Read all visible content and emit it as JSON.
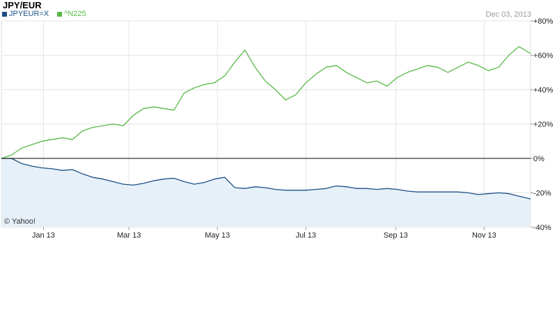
{
  "header": {
    "title": "JPY/EUR",
    "date": "Dec 03, 2013"
  },
  "legend": [
    {
      "name": "JPYEUR=X",
      "color": "#1b4f85"
    },
    {
      "name": "^N225",
      "color": "#58b947"
    }
  ],
  "watermark": "© Yahoo!",
  "chart_data": {
    "type": "line",
    "x_ticks": [
      "Jan 13",
      "Mar 13",
      "May 13",
      "Jul 13",
      "Sep 13",
      "Nov 13"
    ],
    "y_ticks": [
      "+80%",
      "+60%",
      "+40%",
      "+20%",
      "0%",
      "-20%",
      "-40%"
    ],
    "ylim": [
      -40,
      80
    ],
    "xlim": [
      "2012-12-03",
      "2013-12-03"
    ],
    "grid": true,
    "series": [
      {
        "name": "JPYEUR=X",
        "color": "#1b4f85",
        "fill": "#e6f0f8",
        "points": [
          [
            "2012-12-03",
            0
          ],
          [
            "2012-12-10",
            0
          ],
          [
            "2012-12-17",
            -3
          ],
          [
            "2012-12-24",
            -4.5
          ],
          [
            "2012-12-31",
            -5.5
          ],
          [
            "2013-01-07",
            -6
          ],
          [
            "2013-01-14",
            -7
          ],
          [
            "2013-01-21",
            -6.5
          ],
          [
            "2013-01-28",
            -9
          ],
          [
            "2013-02-04",
            -11
          ],
          [
            "2013-02-11",
            -12
          ],
          [
            "2013-02-18",
            -13.5
          ],
          [
            "2013-02-25",
            -15
          ],
          [
            "2013-03-04",
            -15.5
          ],
          [
            "2013-03-11",
            -14.5
          ],
          [
            "2013-03-18",
            -13
          ],
          [
            "2013-03-25",
            -12
          ],
          [
            "2013-04-01",
            -11.5
          ],
          [
            "2013-04-08",
            -13.5
          ],
          [
            "2013-04-15",
            -15
          ],
          [
            "2013-04-22",
            -14
          ],
          [
            "2013-04-29",
            -12
          ],
          [
            "2013-05-06",
            -11
          ],
          [
            "2013-05-13",
            -17
          ],
          [
            "2013-05-20",
            -17.5
          ],
          [
            "2013-05-27",
            -16.5
          ],
          [
            "2013-06-03",
            -17
          ],
          [
            "2013-06-10",
            -18
          ],
          [
            "2013-06-17",
            -18.5
          ],
          [
            "2013-06-24",
            -18.5
          ],
          [
            "2013-07-01",
            -18.5
          ],
          [
            "2013-07-08",
            -18
          ],
          [
            "2013-07-15",
            -17.5
          ],
          [
            "2013-07-22",
            -16
          ],
          [
            "2013-07-29",
            -16.5
          ],
          [
            "2013-08-05",
            -17.5
          ],
          [
            "2013-08-12",
            -17.5
          ],
          [
            "2013-08-19",
            -18
          ],
          [
            "2013-08-26",
            -17.5
          ],
          [
            "2013-09-02",
            -18
          ],
          [
            "2013-09-09",
            -19
          ],
          [
            "2013-09-16",
            -19.5
          ],
          [
            "2013-09-23",
            -19.5
          ],
          [
            "2013-09-30",
            -19.5
          ],
          [
            "2013-10-07",
            -19.5
          ],
          [
            "2013-10-14",
            -19.5
          ],
          [
            "2013-10-21",
            -20
          ],
          [
            "2013-10-28",
            -21
          ],
          [
            "2013-11-04",
            -20.5
          ],
          [
            "2013-11-11",
            -20
          ],
          [
            "2013-11-18",
            -20.5
          ],
          [
            "2013-11-25",
            -22
          ],
          [
            "2013-12-03",
            -23.5
          ]
        ]
      },
      {
        "name": "^N225",
        "color": "#58b947",
        "points": [
          [
            "2012-12-03",
            0
          ],
          [
            "2012-12-10",
            2
          ],
          [
            "2012-12-17",
            6
          ],
          [
            "2012-12-24",
            8
          ],
          [
            "2012-12-31",
            10
          ],
          [
            "2013-01-07",
            11
          ],
          [
            "2013-01-14",
            12
          ],
          [
            "2013-01-21",
            11
          ],
          [
            "2013-01-28",
            16
          ],
          [
            "2013-02-04",
            18
          ],
          [
            "2013-02-11",
            19
          ],
          [
            "2013-02-18",
            20
          ],
          [
            "2013-02-25",
            19
          ],
          [
            "2013-03-04",
            25
          ],
          [
            "2013-03-11",
            29
          ],
          [
            "2013-03-18",
            30
          ],
          [
            "2013-03-25",
            29
          ],
          [
            "2013-04-01",
            28
          ],
          [
            "2013-04-08",
            38
          ],
          [
            "2013-04-15",
            41
          ],
          [
            "2013-04-22",
            43
          ],
          [
            "2013-04-29",
            44
          ],
          [
            "2013-05-06",
            48
          ],
          [
            "2013-05-13",
            56
          ],
          [
            "2013-05-20",
            63
          ],
          [
            "2013-05-27",
            53
          ],
          [
            "2013-06-03",
            45
          ],
          [
            "2013-06-10",
            40
          ],
          [
            "2013-06-17",
            34
          ],
          [
            "2013-06-24",
            37
          ],
          [
            "2013-07-01",
            44
          ],
          [
            "2013-07-08",
            49
          ],
          [
            "2013-07-15",
            53
          ],
          [
            "2013-07-22",
            54
          ],
          [
            "2013-07-29",
            50
          ],
          [
            "2013-08-05",
            47
          ],
          [
            "2013-08-12",
            44
          ],
          [
            "2013-08-19",
            45
          ],
          [
            "2013-08-26",
            42
          ],
          [
            "2013-09-02",
            47
          ],
          [
            "2013-09-09",
            50
          ],
          [
            "2013-09-16",
            52
          ],
          [
            "2013-09-23",
            54
          ],
          [
            "2013-09-30",
            53
          ],
          [
            "2013-10-07",
            50
          ],
          [
            "2013-10-14",
            53
          ],
          [
            "2013-10-21",
            56
          ],
          [
            "2013-10-28",
            54
          ],
          [
            "2013-11-04",
            51
          ],
          [
            "2013-11-11",
            53
          ],
          [
            "2013-11-18",
            60
          ],
          [
            "2013-11-25",
            65
          ],
          [
            "2013-12-03",
            61
          ]
        ]
      }
    ]
  }
}
